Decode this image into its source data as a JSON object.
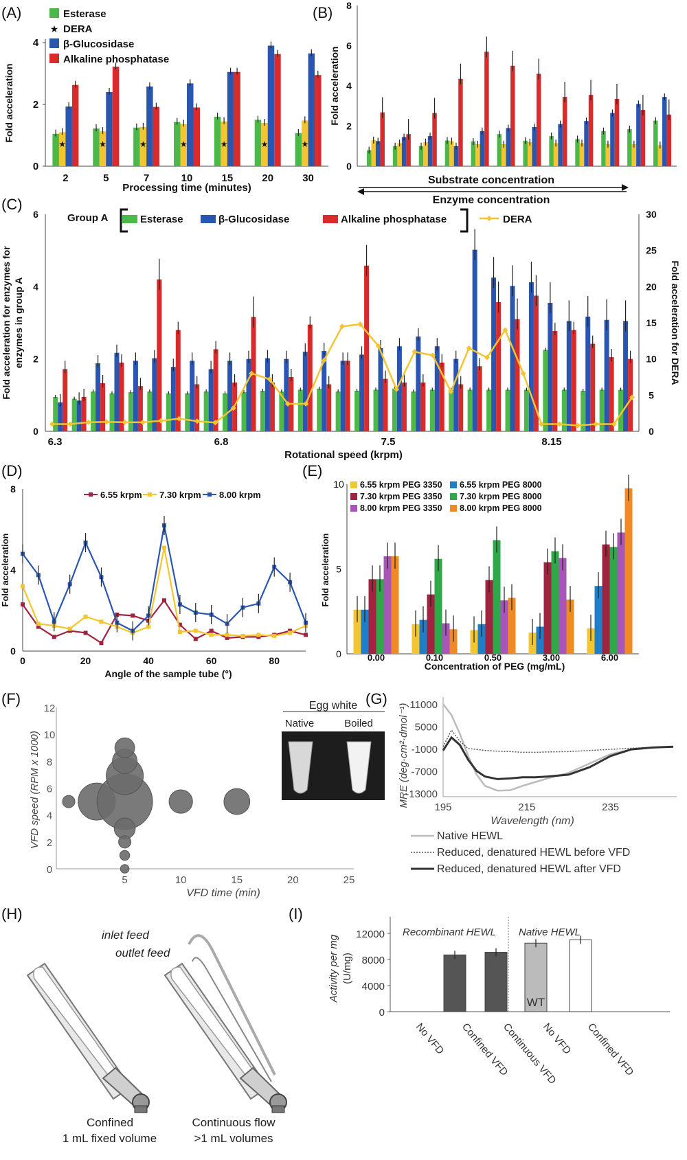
{
  "colors": {
    "esterase": "#4cb84a",
    "dera": "#f2c531",
    "glucosidase": "#2a56b0",
    "alkaline": "#d92b2b",
    "maroon": "#a0243f",
    "purple": "#a855b8",
    "green": "#2ea848",
    "orange": "#f08a24",
    "lightblue": "#1e7ec8",
    "yellow": "#f2c531",
    "gray_dark": "#555555",
    "gray_light": "#bbbbbb"
  },
  "chart_data": [
    {
      "panel": "(A)",
      "type": "bar",
      "xlabel": "Processing time (minutes)",
      "ylabel": "Fold acceleration",
      "ylim": [
        0,
        4
      ],
      "yticks": [
        "0",
        "2",
        "4"
      ],
      "categories": [
        "2",
        "5",
        "7",
        "10",
        "15",
        "20",
        "30"
      ],
      "series": [
        {
          "name": "Esterase",
          "values": [
            1.05,
            1.22,
            1.25,
            1.43,
            1.6,
            1.5,
            1.07
          ]
        },
        {
          "name": "DERA",
          "values": [
            1.1,
            1.13,
            1.27,
            1.37,
            1.45,
            1.4,
            1.48
          ],
          "marker": "★"
        },
        {
          "name": "β-Glucosidase",
          "values": [
            1.93,
            2.4,
            2.58,
            2.68,
            3.05,
            3.9,
            3.65
          ]
        },
        {
          "name": "Alkaline phosphatase",
          "values": [
            2.63,
            3.22,
            1.92,
            1.9,
            3.05,
            3.63,
            2.95
          ]
        }
      ],
      "legend": "top-left"
    },
    {
      "panel": "(B)",
      "type": "bar",
      "ylabel": "Fold acceleration",
      "ylim": [
        0,
        8
      ],
      "yticks": [
        "0",
        "2",
        "4",
        "6",
        "8"
      ],
      "arrow_labels": [
        "Substrate concentration",
        "Enzyme concentration"
      ],
      "series": [
        {
          "name": "Esterase",
          "values": [
            0.8,
            1.0,
            1.0,
            1.28,
            1.23,
            1.6,
            1.27,
            1.5,
            1.35,
            1.75,
            1.85,
            2.27
          ]
        },
        {
          "name": "DERA",
          "values": [
            1.3,
            1.15,
            1.2,
            1.25,
            1.1,
            1.1,
            1.2,
            1.15,
            1.15,
            1.1,
            1.1,
            1.05
          ]
        },
        {
          "name": "β-Glucosidase",
          "values": [
            1.25,
            1.45,
            1.5,
            1.0,
            1.75,
            1.9,
            1.95,
            2.1,
            2.25,
            2.65,
            3.1,
            3.45
          ]
        },
        {
          "name": "Alkaline phosphatase",
          "values": [
            2.68,
            1.6,
            2.65,
            4.35,
            5.7,
            5.0,
            4.6,
            3.45,
            3.55,
            3.35,
            2.8,
            2.57
          ]
        }
      ]
    },
    {
      "panel": "(C)",
      "type": "bar",
      "xlabel": "Rotational speed (krpm)",
      "ylabel": "Fold acceleration for enzymes in group A",
      "ylabel_right": "Fold acceleration for DERA",
      "ylim": [
        0,
        6
      ],
      "ylim_right": [
        0,
        30
      ],
      "yticks": [
        "0",
        "2",
        "4",
        "6"
      ],
      "yticks_right": [
        "0",
        "5",
        "10",
        "15",
        "20",
        "25",
        "30"
      ],
      "xtick_labels": [
        "6.3",
        "6.8",
        "7.5",
        "8.15"
      ],
      "legend_group_label": "Group A",
      "series": [
        {
          "name": "Esterase",
          "values": [
            0.95,
            0.9,
            1.1,
            1.05,
            1.08,
            1.1,
            1.05,
            1.05,
            1.1,
            1.05,
            1.08,
            1.12,
            1.1,
            1.15,
            1.18,
            1.1,
            1.12,
            1.15,
            1.18,
            1.1,
            1.15,
            1.15,
            1.15,
            1.15,
            1.15,
            1.15,
            2.25,
            1.15,
            1.12,
            1.15,
            1.15
          ]
        },
        {
          "name": "β-Glucosidase",
          "values": [
            0.8,
            0.85,
            1.88,
            2.17,
            1.95,
            2.02,
            1.78,
            1.95,
            1.72,
            1.95,
            2.0,
            2.02,
            2.0,
            2.2,
            2.22,
            1.95,
            2.12,
            2.3,
            2.35,
            2.62,
            2.35,
            2.0,
            5.02,
            4.25,
            4.02,
            4.12,
            3.55,
            3.05,
            3.17,
            3.08,
            3.05
          ]
        },
        {
          "name": "Alkaline phosphatase",
          "values": [
            1.72,
            0.95,
            1.33,
            1.9,
            1.25,
            4.2,
            2.8,
            1.3,
            2.27,
            1.35,
            3.16,
            1.35,
            1.5,
            2.95,
            1.3,
            1.95,
            4.58,
            1.45,
            1.35,
            1.35,
            1.9,
            1.3,
            1.8,
            3.57,
            3.1,
            3.75,
            2.77,
            2.8,
            2.42,
            2.05,
            2.0
          ]
        }
      ],
      "dera_line": [
        1.0,
        1.0,
        1.25,
        1.3,
        1.25,
        1.25,
        1.45,
        1.75,
        1.4,
        1.2,
        3.2,
        8.0,
        7.2,
        3.8,
        3.8,
        9.8,
        14.5,
        14.8,
        11.8,
        5.8,
        11.0,
        10.5,
        5.5,
        11.5,
        10.2,
        14.0,
        8.0,
        1.0,
        1.0,
        0.8,
        1.0,
        1.0,
        4.7
      ]
    },
    {
      "panel": "(D)",
      "type": "line",
      "xlabel": "Angle of the sample tube (°)",
      "ylabel": "Fold acceleration",
      "ylim": [
        0,
        8
      ],
      "xlim": [
        0,
        90
      ],
      "yticks": [
        "0",
        "4",
        "8"
      ],
      "xticks": [
        "0",
        "20",
        "40",
        "60",
        "80"
      ],
      "x": [
        0,
        5,
        10,
        15,
        20,
        25,
        30,
        35,
        40,
        45,
        50,
        55,
        60,
        65,
        70,
        75,
        80,
        85,
        90
      ],
      "series": [
        {
          "name": "6.55 krpm",
          "values": [
            2.3,
            1.2,
            0.7,
            1.0,
            0.9,
            0.4,
            1.8,
            1.75,
            1.5,
            2.5,
            1.3,
            0.6,
            1.0,
            0.65,
            0.7,
            0.7,
            0.8,
            1.0,
            0.8
          ]
        },
        {
          "name": "7.30 krpm",
          "values": [
            3.2,
            1.35,
            1.25,
            1.1,
            1.7,
            1.45,
            1.2,
            0.9,
            1.2,
            5.1,
            0.95,
            1.0,
            0.8,
            0.8,
            0.75,
            0.8,
            0.75,
            0.9,
            1.25
          ]
        },
        {
          "name": "8.00 krpm",
          "values": [
            4.8,
            3.75,
            1.45,
            3.3,
            5.35,
            3.65,
            1.4,
            1.0,
            1.75,
            6.2,
            2.3,
            1.9,
            1.8,
            1.35,
            2.15,
            2.35,
            4.15,
            3.4,
            1.4
          ]
        }
      ],
      "legend": "top-center"
    },
    {
      "panel": "(E)",
      "type": "bar",
      "xlabel": "Concentration of PEG (mg/mL)",
      "ylabel": "Fold acceleration",
      "ylim": [
        0,
        10
      ],
      "yticks": [
        "0",
        "5",
        "10"
      ],
      "categories": [
        "0.00",
        "0.10",
        "0.50",
        "3.00",
        "6.00"
      ],
      "series": [
        {
          "name": "6.55 krpm PEG 3350",
          "values": [
            2.6,
            1.75,
            1.4,
            1.25,
            1.5
          ]
        },
        {
          "name": "6.55 krpm PEG 8000",
          "values": [
            2.6,
            2.0,
            1.75,
            1.6,
            4.0
          ]
        },
        {
          "name": "7.30 krpm PEG 3350",
          "values": [
            4.4,
            3.5,
            4.35,
            5.4,
            6.45
          ]
        },
        {
          "name": "7.30 krpm PEG 8000",
          "values": [
            4.4,
            5.6,
            6.7,
            6.05,
            6.3
          ]
        },
        {
          "name": "8.00 krpm PEG 3350",
          "values": [
            5.75,
            1.8,
            3.15,
            5.65,
            7.15
          ]
        },
        {
          "name": "8.00 krpm PEG 8000",
          "values": [
            5.75,
            1.45,
            3.3,
            3.2,
            9.75
          ]
        }
      ],
      "legend": "top-left"
    },
    {
      "panel": "(F)",
      "type": "scatter",
      "xlabel": "VFD time (min)",
      "ylabel": "VFD speed (RPM x 1000)",
      "xlim": [
        0,
        25
      ],
      "ylim": [
        0,
        12
      ],
      "xticks": [
        "5",
        "10",
        "15",
        "20",
        "25"
      ],
      "yticks": [
        "0",
        "2",
        "4",
        "6",
        "8",
        "10",
        "12"
      ],
      "points": [
        {
          "x": 0,
          "y": 5,
          "size": 1
        },
        {
          "x": 2.5,
          "y": 5,
          "size": 3
        },
        {
          "x": 5,
          "y": 5,
          "size": 4.5
        },
        {
          "x": 5,
          "y": 6.9,
          "size": 3
        },
        {
          "x": 5,
          "y": 8,
          "size": 2
        },
        {
          "x": 5,
          "y": 9,
          "size": 1.6
        },
        {
          "x": 5,
          "y": 3,
          "size": 1.7
        },
        {
          "x": 5,
          "y": 2,
          "size": 1
        },
        {
          "x": 5,
          "y": 1,
          "size": 0.8
        },
        {
          "x": 5,
          "y": 0,
          "size": 0.7
        },
        {
          "x": 10,
          "y": 5,
          "size": 1.9
        },
        {
          "x": 15,
          "y": 5,
          "size": 2.1
        }
      ],
      "inset": {
        "title": "Egg white",
        "labels": [
          "Native",
          "Boiled"
        ]
      }
    },
    {
      "panel": "(G)",
      "type": "line",
      "xlabel": "Wavelength (nm)",
      "ylabel": "MRE (deg·cm²·dmol⁻¹)",
      "xlim": [
        195,
        250
      ],
      "ylim": [
        -13000,
        11000
      ],
      "xticks": [
        "195",
        "215",
        "235"
      ],
      "yticks": [
        "11000",
        "5000",
        "-1000",
        "-7000",
        "-13000"
      ],
      "x": [
        195,
        197,
        199,
        201,
        203,
        205,
        208,
        211,
        214,
        217,
        220,
        225,
        230,
        235,
        240,
        245,
        250
      ],
      "series": [
        {
          "name": "Native HEWL",
          "values": [
            11000,
            8000,
            3000,
            -3000,
            -8000,
            -11000,
            -12300,
            -12200,
            -11000,
            -10000,
            -9000,
            -7500,
            -5000,
            -2500,
            -1200,
            -800,
            -500
          ]
        },
        {
          "name": "Reduced, denatured HEWL before VFD",
          "values": [
            -500,
            4000,
            1000,
            -1000,
            -1200,
            -1500,
            -1700,
            -1800,
            -2000,
            -2000,
            -1900,
            -1800,
            -1500,
            -1200,
            -900,
            -700,
            -500
          ]
        },
        {
          "name": "Reduced, denatured HEWL after VFD",
          "values": [
            -1500,
            2000,
            0,
            -4000,
            -7000,
            -8500,
            -9200,
            -9000,
            -8700,
            -8700,
            -8500,
            -8000,
            -6000,
            -3000,
            -1200,
            -700,
            -500
          ]
        }
      ],
      "legend": "bottom"
    },
    {
      "panel": "(I)",
      "type": "bar",
      "ylabel": "Activity per mg (U/mg)",
      "ylim": [
        0,
        14000
      ],
      "yticks": [
        "0",
        "4000",
        "8000",
        "12000"
      ],
      "categories": [
        "No VFD",
        "Confined VFD",
        "Continuous VFD",
        "No VFD",
        "Confined VFD"
      ],
      "values": [
        0,
        8700,
        9100,
        10500,
        11000
      ],
      "groups": [
        "Recombinant HEWL",
        "Native HEWL"
      ],
      "annotation": "WT"
    }
  ],
  "panels": {
    "A": {
      "label": "(A)"
    },
    "B": {
      "label": "(B)"
    },
    "C": {
      "label": "(C)"
    },
    "D": {
      "label": "(D)"
    },
    "E": {
      "label": "(E)"
    },
    "F": {
      "label": "(F)"
    },
    "G": {
      "label": "(G)"
    },
    "H": {
      "label": "(H)",
      "labels": [
        "inlet feed",
        "outlet feed",
        "Confined",
        "1 mL fixed volume",
        "Continuous flow",
        ">1 mL volumes"
      ]
    },
    "I": {
      "label": "(I)"
    }
  }
}
